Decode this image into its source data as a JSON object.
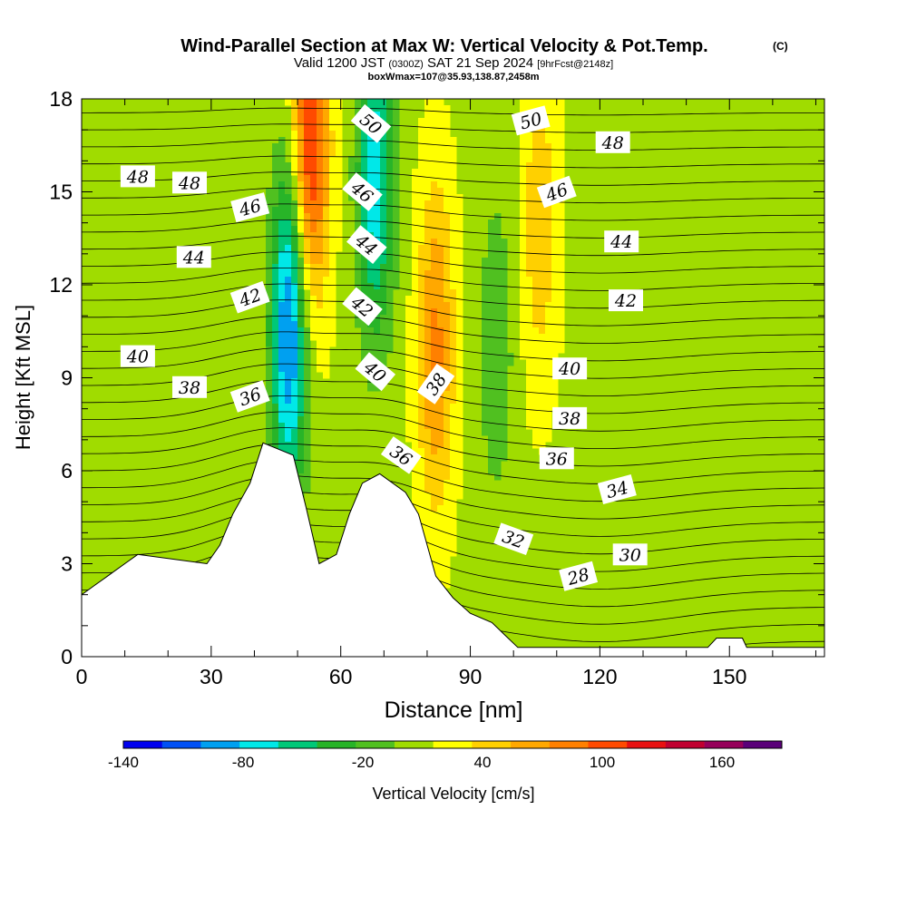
{
  "chart_data": {
    "type": "heatmap",
    "title": "Wind-Parallel Section at Max W: Vertical Velocity & Pot.Temp.",
    "title_mark": "(C)",
    "subtitle_main": "Valid 1200 JST",
    "subtitle_z": "(0300Z)",
    "subtitle_date": "SAT 21 Sep 2024",
    "subtitle_fcst": "[9hrFcst@2148z]",
    "subtitle2": "boxWmax=107@35.93,138.87,2458m",
    "xlabel": "Distance [nm]",
    "ylabel": "Height [Kft MSL]",
    "xlim": [
      0,
      172
    ],
    "ylim": [
      0,
      18
    ],
    "x_ticks": [
      0,
      30,
      60,
      90,
      120,
      150
    ],
    "y_ticks": [
      0,
      3,
      6,
      9,
      12,
      15,
      18
    ],
    "colorbar": {
      "label": "Vertical Velocity [cm/s]",
      "tick_labels": [
        "-140",
        "-80",
        "-20",
        "40",
        "100",
        "160"
      ],
      "tick_values": [
        -140,
        -80,
        -20,
        40,
        100,
        160
      ],
      "min": -140,
      "max": 190,
      "step": 20,
      "colors": [
        "#0000ee",
        "#0050f5",
        "#00a0f0",
        "#00e8e8",
        "#00c878",
        "#28b428",
        "#50c020",
        "#a0dc00",
        "#ffff00",
        "#ffd000",
        "#ffa800",
        "#ff8000",
        "#ff4a00",
        "#e81010",
        "#c00030",
        "#96005a",
        "#5a0078"
      ]
    },
    "velocity_features": [
      {
        "x": 48,
        "h": 10.5,
        "w": -120
      },
      {
        "x": 68,
        "h": 15.5,
        "w": -90
      },
      {
        "x": 53,
        "h": 16.5,
        "w": 110
      },
      {
        "x": 82,
        "h": 10,
        "w": 70
      },
      {
        "x": 106,
        "h": 14,
        "w": 40
      },
      {
        "x": 96,
        "h": 10,
        "w": -30
      }
    ],
    "terrain": [
      [
        0,
        2
      ],
      [
        3,
        2.3
      ],
      [
        6,
        2.6
      ],
      [
        10,
        3
      ],
      [
        13,
        3.3
      ],
      [
        29,
        3
      ],
      [
        32,
        3.6
      ],
      [
        35,
        4.6
      ],
      [
        39,
        5.6
      ],
      [
        42,
        6.9
      ],
      [
        49,
        6.5
      ],
      [
        52,
        4.8
      ],
      [
        55,
        3
      ],
      [
        59,
        3.3
      ],
      [
        62,
        4.6
      ],
      [
        65,
        5.6
      ],
      [
        69,
        5.9
      ],
      [
        75,
        5.3
      ],
      [
        78,
        4.6
      ],
      [
        82,
        2.6
      ],
      [
        86,
        1.9
      ],
      [
        90,
        1.4
      ],
      [
        95,
        1.1
      ],
      [
        98,
        0.7
      ],
      [
        101,
        0.3
      ],
      [
        145,
        0.3
      ],
      [
        147,
        0.6
      ],
      [
        153,
        0.6
      ],
      [
        154,
        0.3
      ],
      [
        172,
        0.3
      ]
    ],
    "theta_labels": [
      {
        "value": "48",
        "x": 13,
        "h": 15.5,
        "rot": 0
      },
      {
        "value": "48",
        "x": 25,
        "h": 15.3,
        "rot": 0
      },
      {
        "value": "46",
        "x": 39,
        "h": 14.5,
        "rot": -15
      },
      {
        "value": "44",
        "x": 26,
        "h": 12.9,
        "rot": 0
      },
      {
        "value": "42",
        "x": 39,
        "h": 11.6,
        "rot": -20
      },
      {
        "value": "40",
        "x": 13,
        "h": 9.7,
        "rot": 0
      },
      {
        "value": "38",
        "x": 25,
        "h": 8.7,
        "rot": 0
      },
      {
        "value": "36",
        "x": 39,
        "h": 8.4,
        "rot": -20
      },
      {
        "value": "50",
        "x": 67,
        "h": 17.2,
        "rot": 40
      },
      {
        "value": "46",
        "x": 65,
        "h": 15,
        "rot": 40
      },
      {
        "value": "44",
        "x": 66,
        "h": 13.3,
        "rot": 40
      },
      {
        "value": "42",
        "x": 65,
        "h": 11.3,
        "rot": 40
      },
      {
        "value": "40",
        "x": 68,
        "h": 9.2,
        "rot": 40
      },
      {
        "value": "38",
        "x": 82,
        "h": 8.8,
        "rot": -55
      },
      {
        "value": "36",
        "x": 74,
        "h": 6.5,
        "rot": 35
      },
      {
        "value": "50",
        "x": 104,
        "h": 17.3,
        "rot": -15
      },
      {
        "value": "48",
        "x": 123,
        "h": 16.6,
        "rot": 0
      },
      {
        "value": "46",
        "x": 110,
        "h": 15,
        "rot": -20
      },
      {
        "value": "44",
        "x": 125,
        "h": 13.4,
        "rot": 0
      },
      {
        "value": "42",
        "x": 126,
        "h": 11.5,
        "rot": 0
      },
      {
        "value": "40",
        "x": 113,
        "h": 9.3,
        "rot": 0
      },
      {
        "value": "38",
        "x": 113,
        "h": 7.7,
        "rot": 0
      },
      {
        "value": "36",
        "x": 110,
        "h": 6.4,
        "rot": 0
      },
      {
        "value": "34",
        "x": 124,
        "h": 5.4,
        "rot": -15
      },
      {
        "value": "32",
        "x": 100,
        "h": 3.8,
        "rot": 20
      },
      {
        "value": "30",
        "x": 127,
        "h": 3.3,
        "rot": 0
      },
      {
        "value": "28",
        "x": 115,
        "h": 2.6,
        "rot": -15
      }
    ]
  }
}
